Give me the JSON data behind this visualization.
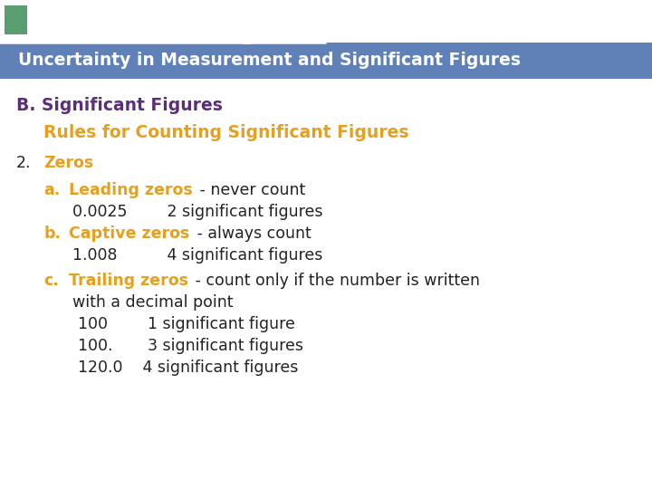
{
  "title": "Uncertainty in Measurement and Significant Figures",
  "title_bar_color": "#6080b8",
  "title_text_color": "#ffffff",
  "bg_color": "#ffffff",
  "green_sq_color": "#5a9e6f",
  "section_b_text": "B. Significant Figures",
  "section_b_color": "#5c2d7a",
  "rules_text": "Rules for Counting Significant Figures",
  "rules_color": "#e6a020",
  "number_label": "2.",
  "number_text": "Zeros",
  "number_color": "#e6a020",
  "dark_text_color": "#222222",
  "items": [
    {
      "label": "a.",
      "bold_part": "Leading zeros",
      "rest": " - never count",
      "example_line1": "0.0025        2 significant figures"
    },
    {
      "label": "b.",
      "bold_part": "Captive zeros",
      "rest": " - always count",
      "example_line1": "1.008          4 significant figures"
    },
    {
      "label": "c.",
      "bold_part": "Trailing zeros",
      "rest": " - count only if the number is written",
      "extra_lines": [
        "with a decimal point",
        "100        1 significant figure",
        "100.       3 significant figures",
        "120.0    4 significant figures"
      ]
    }
  ],
  "figsize": [
    7.2,
    5.4
  ],
  "dpi": 100
}
